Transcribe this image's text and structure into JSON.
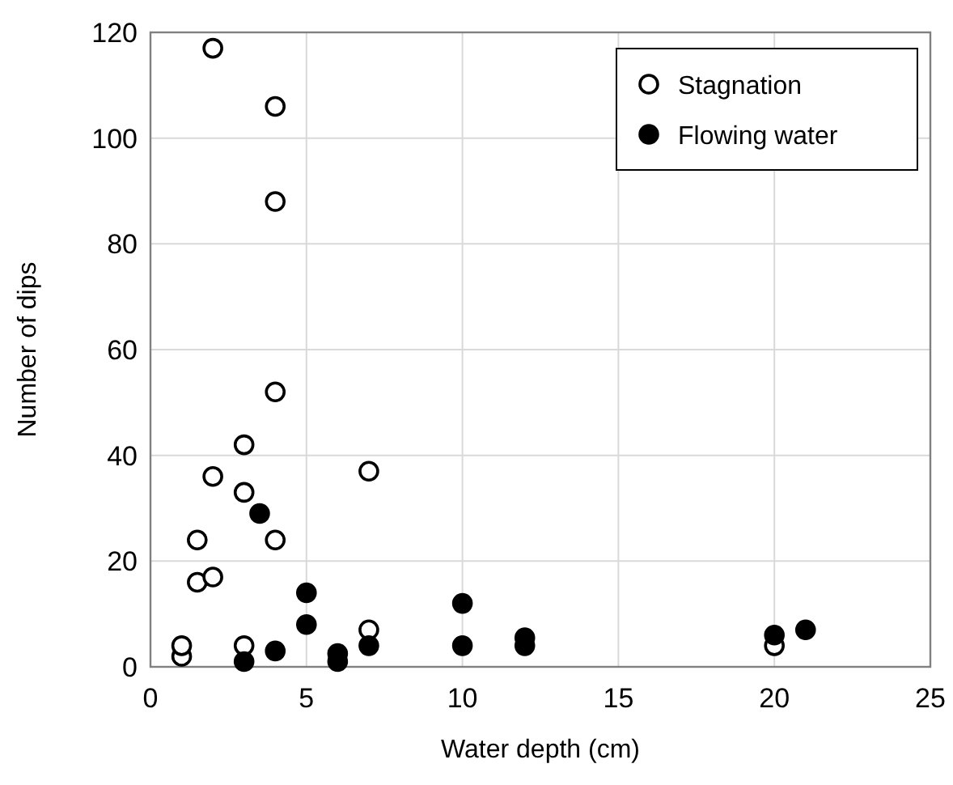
{
  "chart_data": {
    "type": "scatter",
    "xlabel": "Water depth (cm)",
    "ylabel": "Number of dips",
    "xlim": [
      0,
      25
    ],
    "xticks": [
      0,
      5,
      10,
      15,
      20,
      25
    ],
    "ylim": [
      0,
      120
    ],
    "yticks": [
      0,
      20,
      40,
      60,
      80,
      100,
      120
    ],
    "grid": true,
    "legend": "top right",
    "marker": "circle",
    "series": [
      {
        "name": "Stagnation",
        "color": "#000000",
        "x": [
          1,
          1,
          1.5,
          2,
          1.5,
          2,
          2,
          3,
          3,
          3,
          4,
          4,
          4,
          4,
          7,
          7,
          20
        ],
        "values": [
          2,
          4,
          16,
          17,
          24,
          36,
          117,
          4,
          33,
          42,
          24,
          52,
          88,
          106,
          37,
          7,
          4
        ]
      },
      {
        "name": "Flowing water",
        "color": "#000000",
        "x": [
          3,
          3.5,
          4,
          5,
          5,
          6,
          6,
          7,
          10,
          10,
          12,
          12,
          20,
          21
        ],
        "values": [
          1,
          29,
          3,
          14,
          8,
          2.5,
          1,
          4,
          12,
          4,
          5.5,
          4,
          6,
          7
        ]
      }
    ]
  }
}
